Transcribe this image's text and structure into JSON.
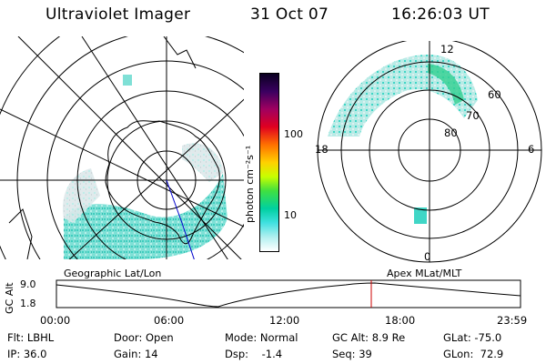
{
  "header": {
    "instrument": "Ultraviolet Imager",
    "date": "31 Oct 07",
    "time": "16:26:03 UT"
  },
  "colorbar": {
    "label": "photon cm⁻²s⁻¹",
    "ticks": [
      "100",
      "10"
    ]
  },
  "apex_plot": {
    "lat_labels": [
      "60",
      "70",
      "80"
    ],
    "mlt_labels": [
      "12",
      "18",
      "6",
      "0"
    ]
  },
  "orbit": {
    "left_label": "Geographic Lat/Lon",
    "right_label": "Apex MLat/MLT",
    "ylabel": "GC Alt",
    "y_ticks": [
      "9.0",
      "1.8"
    ],
    "time_ticks": [
      "00:00",
      "06:00",
      "12:00",
      "18:00",
      "23:59"
    ],
    "marker_color": "#cc0000"
  },
  "status": {
    "flt": "Flt: LBHL",
    "ip": "IP: 36.0",
    "door": "Door: Open",
    "gain": "Gain: 14",
    "mode": "Mode: Normal",
    "dsp": "Dsp:    -1.4",
    "gc_alt": "GC Alt: 8.9 Re",
    "seq": "Seq: 39",
    "glat": "GLat: -75.0",
    "glon": "GLon:  72.9"
  }
}
